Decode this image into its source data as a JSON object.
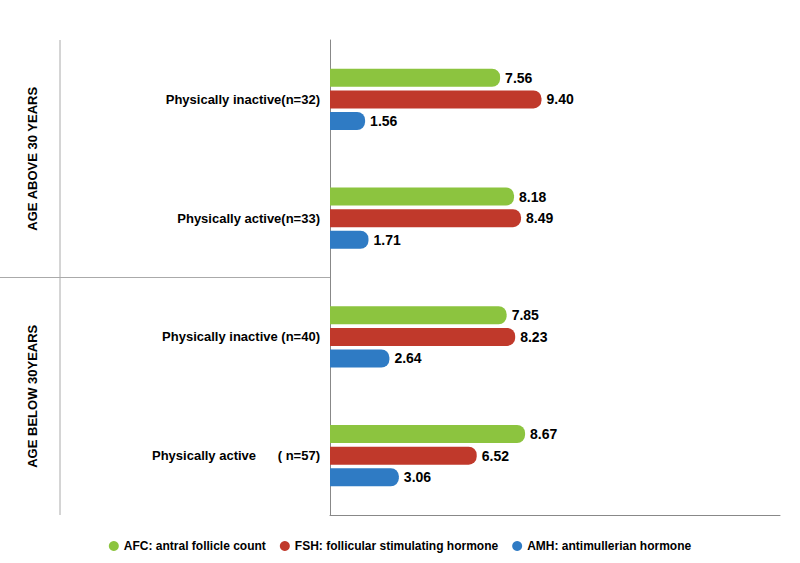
{
  "chart_data": {
    "type": "bar",
    "orientation": "horizontal",
    "categories": [
      "Physically inactive(n=32)",
      "Physically active(n=33)",
      "Physically inactive (n=40)",
      "Physically active      ( n=57)"
    ],
    "groups": [
      {
        "label": "AGE ABOVE 30 YEARS",
        "size": 2
      },
      {
        "label": "AGE BELOW 30YEARS",
        "size": 2
      }
    ],
    "series": [
      {
        "name": "AFC: antral follicle count",
        "color": "#8cc43f",
        "values": [
          7.56,
          8.18,
          7.85,
          8.67
        ],
        "value_labels": [
          "7.56",
          "8.18",
          "7.85",
          "8.67"
        ]
      },
      {
        "name": "FSH: follicular stimulating hormone",
        "color": "#c0392b",
        "values": [
          9.4,
          8.49,
          8.23,
          6.52
        ],
        "value_labels": [
          "9.40",
          "8.49",
          "8.23",
          "6.52"
        ]
      },
      {
        "name": "AMH: antimullerian hormone",
        "color": "#2f7bc4",
        "values": [
          1.56,
          1.71,
          2.64,
          3.06
        ],
        "value_labels": [
          "1.56",
          "1.71",
          "2.64",
          "3.06"
        ]
      }
    ],
    "xlim": [
      0,
      20
    ],
    "xticks": [],
    "grid": false,
    "legend": "bottom",
    "data_labels": true,
    "tick_labels": "y"
  }
}
